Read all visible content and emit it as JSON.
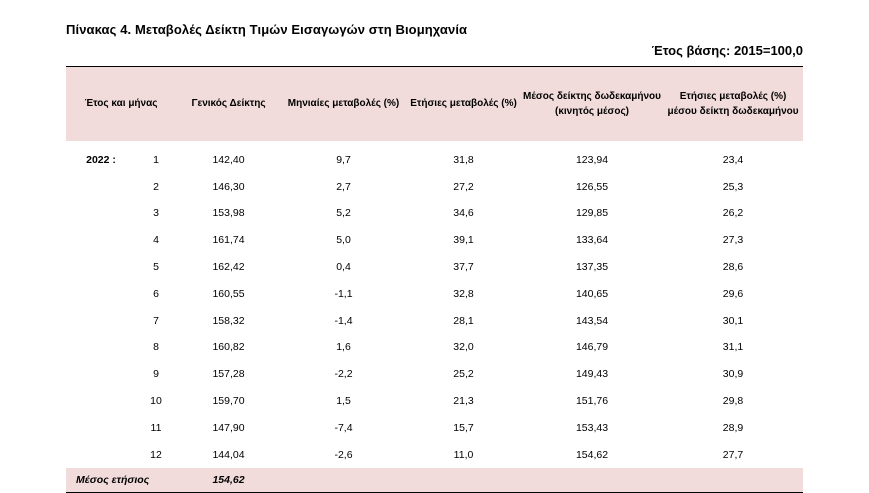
{
  "title": "Πίνακας 4.  Μεταβολές Δείκτη Τιμών Εισαγωγών στη Βιομηχανία",
  "base_year": "Έτος βάσης: 2015=100,0",
  "headers": {
    "period": "Έτος και μήνας",
    "index": "Γενικός Δείκτης",
    "monthly": "Μηνιαίες μεταβολές (%)",
    "annual": "Ετήσιες μεταβολές (%)",
    "avg12": "Μέσος δείκτης δωδεκαμήνου (κινητός μέσος)",
    "avg12_change": "Ετήσιες μεταβολές (%) μέσου δείκτη δωδεκαμήνου"
  },
  "rows": [
    {
      "year": "2022 :",
      "month": "1",
      "index": "142,40",
      "monthly": "9,7",
      "annual": "31,8",
      "avg12": "123,94",
      "avg12_change": "23,4"
    },
    {
      "year": "",
      "month": "2",
      "index": "146,30",
      "monthly": "2,7",
      "annual": "27,2",
      "avg12": "126,55",
      "avg12_change": "25,3"
    },
    {
      "year": "",
      "month": "3",
      "index": "153,98",
      "monthly": "5,2",
      "annual": "34,6",
      "avg12": "129,85",
      "avg12_change": "26,2"
    },
    {
      "year": "",
      "month": "4",
      "index": "161,74",
      "monthly": "5,0",
      "annual": "39,1",
      "avg12": "133,64",
      "avg12_change": "27,3"
    },
    {
      "year": "",
      "month": "5",
      "index": "162,42",
      "monthly": "0,4",
      "annual": "37,7",
      "avg12": "137,35",
      "avg12_change": "28,6"
    },
    {
      "year": "",
      "month": "6",
      "index": "160,55",
      "monthly": "-1,1",
      "annual": "32,8",
      "avg12": "140,65",
      "avg12_change": "29,6"
    },
    {
      "year": "",
      "month": "7",
      "index": "158,32",
      "monthly": "-1,4",
      "annual": "28,1",
      "avg12": "143,54",
      "avg12_change": "30,1"
    },
    {
      "year": "",
      "month": "8",
      "index": "160,82",
      "monthly": "1,6",
      "annual": "32,0",
      "avg12": "146,79",
      "avg12_change": "31,1"
    },
    {
      "year": "",
      "month": "9",
      "index": "157,28",
      "monthly": "-2,2",
      "annual": "25,2",
      "avg12": "149,43",
      "avg12_change": "30,9"
    },
    {
      "year": "",
      "month": "10",
      "index": "159,70",
      "monthly": "1,5",
      "annual": "21,3",
      "avg12": "151,76",
      "avg12_change": "29,8"
    },
    {
      "year": "",
      "month": "11",
      "index": "147,90",
      "monthly": "-7,4",
      "annual": "15,7",
      "avg12": "153,43",
      "avg12_change": "28,9"
    },
    {
      "year": "",
      "month": "12",
      "index": "144,04",
      "monthly": "-2,6",
      "annual": "11,0",
      "avg12": "154,62",
      "avg12_change": "27,7"
    }
  ],
  "footer": {
    "label": "Μέσος ετήσιος",
    "index": "154,62"
  },
  "colors": {
    "header_bg": "#f2dcdb"
  }
}
